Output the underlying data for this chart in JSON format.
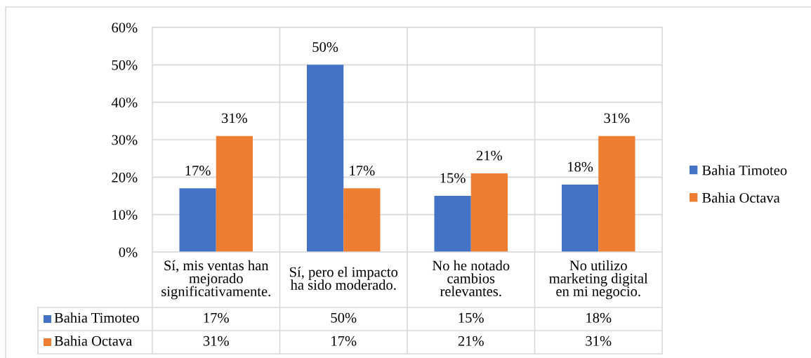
{
  "chart_data": {
    "type": "bar",
    "categories": [
      "Sí, mis ventas han\nmejorado\nsignificativamente.",
      "Sí, pero el impacto\nha sido moderado.",
      "No he notado\ncambios\nrelevantes.",
      "No utilizo\nmarketing digital\nen mi negocio."
    ],
    "series": [
      {
        "name": "Bahia Timoteo",
        "color": "#4472c4",
        "values": [
          17,
          50,
          15,
          18
        ],
        "value_labels": [
          "17%",
          "50%",
          "15%",
          "18%"
        ]
      },
      {
        "name": "Bahia Octava",
        "color": "#ed7d31",
        "values": [
          31,
          17,
          21,
          31
        ],
        "value_labels": [
          "31%",
          "17%",
          "21%",
          "31%"
        ]
      }
    ],
    "ylim": [
      0,
      60
    ],
    "yticks": [
      {
        "value": 0,
        "label": "0%"
      },
      {
        "value": 10,
        "label": "10%"
      },
      {
        "value": 20,
        "label": "20%"
      },
      {
        "value": 30,
        "label": "30%"
      },
      {
        "value": 40,
        "label": "40%"
      },
      {
        "value": 50,
        "label": "50%"
      },
      {
        "value": 60,
        "label": "60%"
      }
    ],
    "grid": true,
    "legend": "right"
  }
}
